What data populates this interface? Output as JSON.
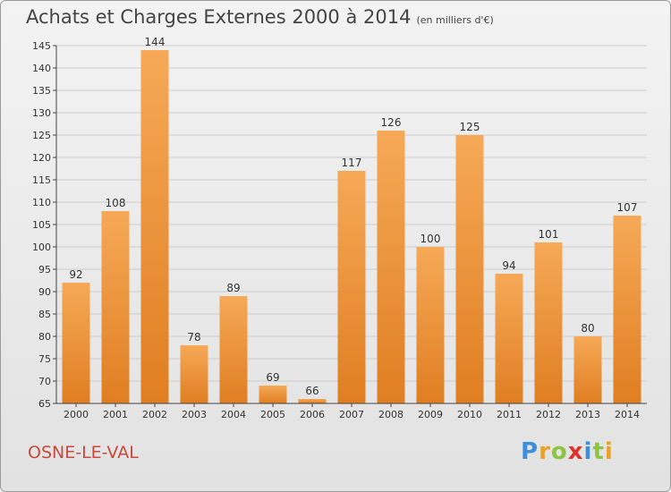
{
  "header": {
    "title": "Achats et Charges Externes 2000 à 2014",
    "subtitle": "(en milliers d'€)"
  },
  "footer": {
    "commune": "OSNE-LE-VAL",
    "logo_letters": [
      {
        "char": "P",
        "color": "#3c8fd8"
      },
      {
        "char": "r",
        "color": "#e8a22c"
      },
      {
        "char": "o",
        "color": "#8cc63f"
      },
      {
        "char": "x",
        "color": "#e0322a"
      },
      {
        "char": "i",
        "color": "#3c8fd8"
      },
      {
        "char": "t",
        "color": "#8cc63f"
      },
      {
        "char": "i",
        "color": "#e8a22c"
      }
    ]
  },
  "colors": {
    "bar_light": "#f6a957",
    "bar_dark": "#e07e22",
    "axis": "#444444",
    "grid": "#cccccc"
  },
  "chart_data": {
    "type": "bar",
    "categories": [
      "2000",
      "2001",
      "2002",
      "2003",
      "2004",
      "2005",
      "2006",
      "2007",
      "2008",
      "2009",
      "2010",
      "2011",
      "2012",
      "2013",
      "2014"
    ],
    "values": [
      92,
      108,
      144,
      78,
      89,
      69,
      66,
      117,
      126,
      100,
      125,
      94,
      101,
      80,
      107
    ],
    "yticks": [
      65,
      70,
      75,
      80,
      85,
      90,
      95,
      100,
      105,
      110,
      115,
      120,
      125,
      130,
      135,
      140,
      145
    ],
    "ylim": [
      65,
      145
    ],
    "grid": true,
    "legend": "none"
  }
}
